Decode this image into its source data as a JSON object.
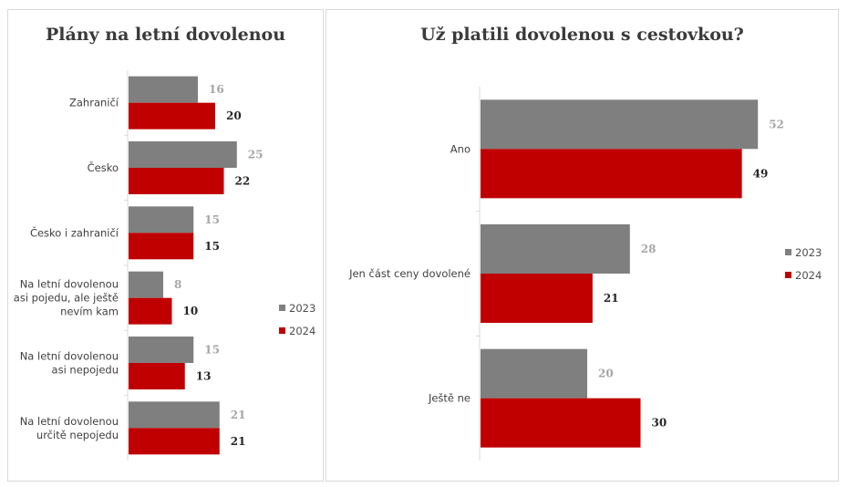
{
  "colors": {
    "s2023": "#7f7f7f",
    "s2024": "#c00000",
    "label2023": "#a6a6a6",
    "label2024": "#262626",
    "axis": "#d9d9d9"
  },
  "chart_data": [
    {
      "type": "bar",
      "orientation": "horizontal",
      "title": "Plány na letní dovolenou",
      "categories": [
        "Zahraničí",
        "Česko",
        "Česko i zahraničí",
        "Na letní dovolenou asi pojedu, ale ještě nevím kam",
        "Na letní dovolenou asi nepojedu",
        "Na letní dovolenou určitě nepojedu"
      ],
      "category_lines": [
        [
          "Zahraničí"
        ],
        [
          "Česko"
        ],
        [
          "Česko i zahraničí"
        ],
        [
          "Na letní dovolenou",
          "asi pojedu, ale ještě",
          "nevím kam"
        ],
        [
          "Na letní dovolenou",
          "asi nepojedu"
        ],
        [
          "Na letní dovolenou",
          "určitě nepojedu"
        ]
      ],
      "series": [
        {
          "name": "2023",
          "values": [
            16,
            25,
            15,
            8,
            15,
            21
          ]
        },
        {
          "name": "2024",
          "values": [
            20,
            22,
            15,
            10,
            13,
            21
          ]
        }
      ],
      "xlim": [
        0,
        40
      ],
      "legend": "right",
      "grid": false
    },
    {
      "type": "bar",
      "orientation": "horizontal",
      "title": "Už platili dovolenou s cestovkou?",
      "categories": [
        "Ano",
        "Jen část ceny dovolené",
        "Ještě ne"
      ],
      "category_lines": [
        [
          "Ano"
        ],
        [
          "Jen část ceny dovolené"
        ],
        [
          "Ještě ne"
        ]
      ],
      "series": [
        {
          "name": "2023",
          "values": [
            52,
            28,
            20
          ]
        },
        {
          "name": "2024",
          "values": [
            49,
            21,
            30
          ]
        }
      ],
      "xlim": [
        0,
        60
      ],
      "legend": "right",
      "grid": false
    }
  ]
}
